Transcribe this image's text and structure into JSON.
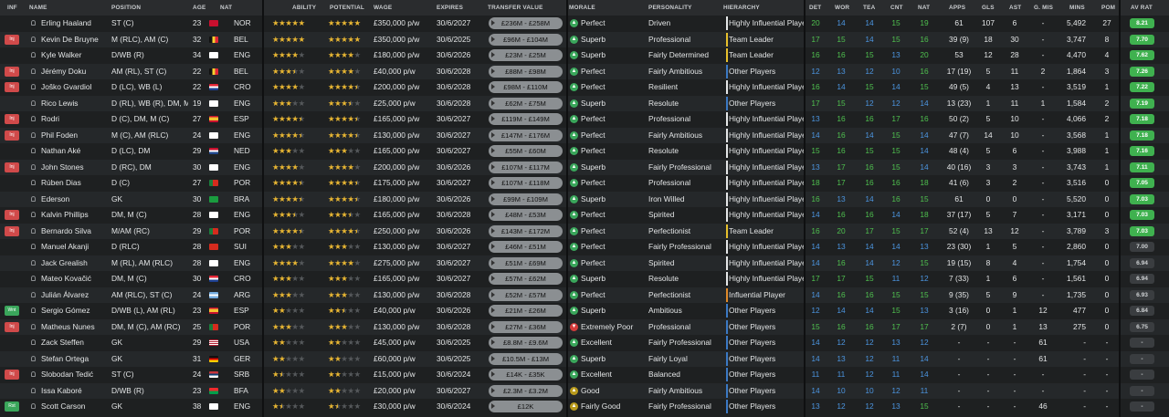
{
  "headers": [
    "INF",
    "NAME",
    "POSITION",
    "AGE",
    "NAT",
    "ABILITY",
    "POTENTIAL",
    "WAGE",
    "EXPIRES",
    "TRANSFER VALUE",
    "MORALE",
    "PERSONALITY",
    "HIERARCHY",
    "DET",
    "WOR",
    "TEA",
    "CNT",
    "NAT",
    "APPS",
    "GLS",
    "AST",
    "G. MIS",
    "MINS",
    "POM",
    "AV RAT"
  ],
  "colors": {
    "gold": "#e8b633",
    "green_rating": "#3fb14f",
    "hier_yellow": "#e7c02c",
    "hier_white": "#e5e7e8",
    "hier_blue": "#3b79c4",
    "hier_orange": "#e08a2a",
    "hier_grey": "#9a9da0"
  },
  "players": [
    {
      "inf": "",
      "name": "Erling Haaland",
      "pos": "ST (C)",
      "age": "23",
      "nat": "NOR",
      "ab": 5,
      "pot": 5,
      "wage": "£350,000 p/w",
      "exp": "30/6/2027",
      "tv": "£236M - £258M",
      "mor": "Perfect",
      "mt": "pos",
      "pers": "Driven",
      "hier": "Highly Influential Player",
      "hc": "white",
      "det": "20",
      "wor": "14",
      "tea": "14",
      "cnt": "15",
      "nat2": "19",
      "apps": "61",
      "gls": "107",
      "ast": "6",
      "gmis": "-",
      "mins": "5,492",
      "pom": "27",
      "rat": "8.21",
      "rc": "g"
    },
    {
      "inf": "Inj",
      "name": "Kevin De Bruyne",
      "pos": "M (RLC), AM (C)",
      "age": "32",
      "nat": "BEL",
      "ab": 5,
      "pot": 5,
      "wage": "£350,000 p/w",
      "exp": "30/6/2025",
      "tv": "£96M - £104M",
      "mor": "Superb",
      "mt": "pos",
      "pers": "Professional",
      "hier": "Team Leader",
      "hc": "yellow",
      "det": "17",
      "wor": "15",
      "tea": "14",
      "cnt": "15",
      "nat2": "16",
      "apps": "39 (9)",
      "gls": "18",
      "ast": "30",
      "gmis": "-",
      "mins": "3,747",
      "pom": "8",
      "rat": "7.70",
      "rc": "g"
    },
    {
      "inf": "",
      "name": "Kyle Walker",
      "pos": "D/WB (R)",
      "age": "34",
      "nat": "ENG",
      "ab": 4,
      "pot": 4,
      "wage": "£180,000 p/w",
      "exp": "30/6/2026",
      "tv": "£23M - £25M",
      "mor": "Superb",
      "mt": "pos",
      "pers": "Fairly Determined",
      "hier": "Team Leader",
      "hc": "yellow",
      "det": "16",
      "wor": "16",
      "tea": "15",
      "cnt": "13",
      "nat2": "20",
      "apps": "53",
      "gls": "12",
      "ast": "28",
      "gmis": "-",
      "mins": "4,470",
      "pom": "4",
      "rat": "7.62",
      "rc": "g"
    },
    {
      "inf": "Inj",
      "name": "Jérémy Doku",
      "pos": "AM (RL), ST (C)",
      "age": "22",
      "nat": "BEL",
      "ab": 3.5,
      "pot": 4,
      "wage": "£40,000 p/w",
      "exp": "30/6/2028",
      "tv": "£88M - £98M",
      "mor": "Perfect",
      "mt": "pos",
      "pers": "Fairly Ambitious",
      "hier": "Other Players",
      "hc": "blue",
      "det": "12",
      "wor": "13",
      "tea": "12",
      "cnt": "10",
      "nat2": "16",
      "apps": "17 (19)",
      "gls": "5",
      "ast": "11",
      "gmis": "2",
      "mins": "1,864",
      "pom": "3",
      "rat": "7.26",
      "rc": "g"
    },
    {
      "inf": "Inj",
      "name": "Joško Gvardiol",
      "pos": "D (LC), WB (L)",
      "age": "22",
      "nat": "CRO",
      "ab": 4,
      "pot": 4.5,
      "wage": "£200,000 p/w",
      "exp": "30/6/2028",
      "tv": "£98M - £110M",
      "mor": "Perfect",
      "mt": "pos",
      "pers": "Resilient",
      "hier": "Highly Influential Player",
      "hc": "white",
      "det": "16",
      "wor": "14",
      "tea": "15",
      "cnt": "14",
      "nat2": "15",
      "apps": "49 (5)",
      "gls": "4",
      "ast": "13",
      "gmis": "-",
      "mins": "3,519",
      "pom": "1",
      "rat": "7.22",
      "rc": "g"
    },
    {
      "inf": "",
      "name": "Rico Lewis",
      "pos": "D (RL), WB (R), DM, M (C)",
      "age": "19",
      "nat": "ENG",
      "ab": 3,
      "pot": 3.5,
      "wage": "£25,000 p/w",
      "exp": "30/6/2028",
      "tv": "£62M - £75M",
      "mor": "Superb",
      "mt": "pos",
      "pers": "Resolute",
      "hier": "Other Players",
      "hc": "blue",
      "det": "17",
      "wor": "15",
      "tea": "12",
      "cnt": "12",
      "nat2": "14",
      "apps": "13 (23)",
      "gls": "1",
      "ast": "11",
      "gmis": "1",
      "mins": "1,584",
      "pom": "2",
      "rat": "7.19",
      "rc": "g"
    },
    {
      "inf": "Inj",
      "name": "Rodri",
      "pos": "D (C), DM, M (C)",
      "age": "27",
      "nat": "ESP",
      "ab": 4.5,
      "pot": 4.5,
      "wage": "£165,000 p/w",
      "exp": "30/6/2027",
      "tv": "£119M - £149M",
      "mor": "Perfect",
      "mt": "pos",
      "pers": "Professional",
      "hier": "Highly Influential Player",
      "hc": "white",
      "det": "13",
      "wor": "16",
      "tea": "16",
      "cnt": "17",
      "nat2": "16",
      "apps": "50 (2)",
      "gls": "5",
      "ast": "10",
      "gmis": "-",
      "mins": "4,066",
      "pom": "2",
      "rat": "7.18",
      "rc": "g"
    },
    {
      "inf": "Inj",
      "name": "Phil Foden",
      "pos": "M (C), AM (RLC)",
      "age": "24",
      "nat": "ENG",
      "ab": 4.5,
      "pot": 4.5,
      "wage": "£130,000 p/w",
      "exp": "30/6/2027",
      "tv": "£147M - £176M",
      "mor": "Perfect",
      "mt": "pos",
      "pers": "Fairly Ambitious",
      "hier": "Highly Influential Player",
      "hc": "white",
      "det": "14",
      "wor": "16",
      "tea": "14",
      "cnt": "15",
      "nat2": "14",
      "apps": "47 (7)",
      "gls": "14",
      "ast": "10",
      "gmis": "-",
      "mins": "3,568",
      "pom": "1",
      "rat": "7.18",
      "rc": "g"
    },
    {
      "inf": "",
      "name": "Nathan Aké",
      "pos": "D (LC), DM",
      "age": "29",
      "nat": "NED",
      "ab": 3,
      "pot": 3,
      "wage": "£165,000 p/w",
      "exp": "30/6/2027",
      "tv": "£55M - £60M",
      "mor": "Perfect",
      "mt": "pos",
      "pers": "Resolute",
      "hier": "Highly Influential Player",
      "hc": "white",
      "det": "15",
      "wor": "16",
      "tea": "15",
      "cnt": "15",
      "nat2": "14",
      "apps": "48 (4)",
      "gls": "5",
      "ast": "6",
      "gmis": "-",
      "mins": "3,988",
      "pom": "1",
      "rat": "7.16",
      "rc": "g"
    },
    {
      "inf": "Inj",
      "name": "John Stones",
      "pos": "D (RC), DM",
      "age": "30",
      "nat": "ENG",
      "ab": 4,
      "pot": 4,
      "wage": "£200,000 p/w",
      "exp": "30/6/2026",
      "tv": "£107M - £117M",
      "mor": "Superb",
      "mt": "pos",
      "pers": "Fairly Professional",
      "hier": "Highly Influential Player",
      "hc": "white",
      "det": "13",
      "wor": "17",
      "tea": "16",
      "cnt": "15",
      "nat2": "14",
      "apps": "40 (16)",
      "gls": "3",
      "ast": "3",
      "gmis": "-",
      "mins": "3,743",
      "pom": "1",
      "rat": "7.11",
      "rc": "g"
    },
    {
      "inf": "",
      "name": "Rúben Dias",
      "pos": "D (C)",
      "age": "27",
      "nat": "POR",
      "ab": 4.5,
      "pot": 4.5,
      "wage": "£175,000 p/w",
      "exp": "30/6/2027",
      "tv": "£107M - £118M",
      "mor": "Perfect",
      "mt": "pos",
      "pers": "Professional",
      "hier": "Highly Influential Player",
      "hc": "white",
      "det": "18",
      "wor": "17",
      "tea": "16",
      "cnt": "16",
      "nat2": "18",
      "apps": "41 (6)",
      "gls": "3",
      "ast": "2",
      "gmis": "-",
      "mins": "3,516",
      "pom": "0",
      "rat": "7.05",
      "rc": "g"
    },
    {
      "inf": "",
      "name": "Ederson",
      "pos": "GK",
      "age": "30",
      "nat": "BRA",
      "ab": 4.5,
      "pot": 4.5,
      "wage": "£180,000 p/w",
      "exp": "30/6/2026",
      "tv": "£99M - £109M",
      "mor": "Superb",
      "mt": "pos",
      "pers": "Iron Willed",
      "hier": "Highly Influential Player",
      "hc": "white",
      "det": "16",
      "wor": "13",
      "tea": "14",
      "cnt": "16",
      "nat2": "15",
      "apps": "61",
      "gls": "0",
      "ast": "0",
      "gmis": "-",
      "mins": "5,520",
      "pom": "0",
      "rat": "7.03",
      "rc": "g"
    },
    {
      "inf": "Inj",
      "name": "Kalvin Phillips",
      "pos": "DM, M (C)",
      "age": "28",
      "nat": "ENG",
      "ab": 3.5,
      "pot": 3.5,
      "wage": "£165,000 p/w",
      "exp": "30/6/2028",
      "tv": "£48M - £53M",
      "mor": "Perfect",
      "mt": "pos",
      "pers": "Spirited",
      "hier": "Highly Influential Player",
      "hc": "white",
      "det": "14",
      "wor": "16",
      "tea": "16",
      "cnt": "14",
      "nat2": "18",
      "apps": "37 (17)",
      "gls": "5",
      "ast": "7",
      "gmis": "-",
      "mins": "3,171",
      "pom": "0",
      "rat": "7.03",
      "rc": "g"
    },
    {
      "inf": "Inj",
      "name": "Bernardo Silva",
      "pos": "M/AM (RC)",
      "age": "29",
      "nat": "POR",
      "ab": 4.5,
      "pot": 4.5,
      "wage": "£250,000 p/w",
      "exp": "30/6/2026",
      "tv": "£143M - £172M",
      "mor": "Perfect",
      "mt": "pos",
      "pers": "Perfectionist",
      "hier": "Team Leader",
      "hc": "yellow",
      "det": "16",
      "wor": "20",
      "tea": "17",
      "cnt": "15",
      "nat2": "17",
      "apps": "52 (4)",
      "gls": "13",
      "ast": "12",
      "gmis": "-",
      "mins": "3,789",
      "pom": "3",
      "rat": "7.03",
      "rc": "g"
    },
    {
      "inf": "",
      "name": "Manuel Akanji",
      "pos": "D (RLC)",
      "age": "28",
      "nat": "SUI",
      "ab": 3,
      "pot": 3,
      "wage": "£130,000 p/w",
      "exp": "30/6/2027",
      "tv": "£46M - £51M",
      "mor": "Perfect",
      "mt": "pos",
      "pers": "Fairly Professional",
      "hier": "Highly Influential Player",
      "hc": "white",
      "det": "14",
      "wor": "13",
      "tea": "14",
      "cnt": "14",
      "nat2": "13",
      "apps": "23 (30)",
      "gls": "1",
      "ast": "5",
      "gmis": "-",
      "mins": "2,860",
      "pom": "0",
      "rat": "7.00",
      "rc": "n"
    },
    {
      "inf": "",
      "name": "Jack Grealish",
      "pos": "M (RL), AM (RLC)",
      "age": "28",
      "nat": "ENG",
      "ab": 4,
      "pot": 4,
      "wage": "£275,000 p/w",
      "exp": "30/6/2027",
      "tv": "£51M - £69M",
      "mor": "Perfect",
      "mt": "pos",
      "pers": "Spirited",
      "hier": "Highly Influential Player",
      "hc": "white",
      "det": "14",
      "wor": "16",
      "tea": "14",
      "cnt": "12",
      "nat2": "15",
      "apps": "19 (15)",
      "gls": "8",
      "ast": "4",
      "gmis": "-",
      "mins": "1,754",
      "pom": "0",
      "rat": "6.94",
      "rc": "n"
    },
    {
      "inf": "",
      "name": "Mateo Kovačić",
      "pos": "DM, M (C)",
      "age": "30",
      "nat": "CRO",
      "ab": 3,
      "pot": 3,
      "wage": "£165,000 p/w",
      "exp": "30/6/2027",
      "tv": "£57M - £62M",
      "mor": "Superb",
      "mt": "pos",
      "pers": "Resolute",
      "hier": "Highly Influential Player",
      "hc": "white",
      "det": "17",
      "wor": "17",
      "tea": "15",
      "cnt": "11",
      "nat2": "12",
      "apps": "7 (33)",
      "gls": "1",
      "ast": "6",
      "gmis": "-",
      "mins": "1,561",
      "pom": "0",
      "rat": "6.94",
      "rc": "n"
    },
    {
      "inf": "",
      "name": "Julián Álvarez",
      "pos": "AM (RLC), ST (C)",
      "age": "24",
      "nat": "ARG",
      "ab": 3,
      "pot": 3,
      "wage": "£130,000 p/w",
      "exp": "30/6/2028",
      "tv": "£52M - £57M",
      "mor": "Perfect",
      "mt": "pos",
      "pers": "Perfectionist",
      "hier": "Influential Player",
      "hc": "orange",
      "det": "14",
      "wor": "16",
      "tea": "16",
      "cnt": "15",
      "nat2": "15",
      "apps": "9 (35)",
      "gls": "5",
      "ast": "9",
      "gmis": "-",
      "mins": "1,735",
      "pom": "0",
      "rat": "6.93",
      "rc": "n"
    },
    {
      "inf": "Wnt",
      "name": "Sergio Gómez",
      "pos": "D/WB (L), AM (RL)",
      "age": "23",
      "nat": "ESP",
      "ab": 2,
      "pot": 2.5,
      "wage": "£40,000 p/w",
      "exp": "30/6/2026",
      "tv": "£21M - £26M",
      "mor": "Superb",
      "mt": "pos",
      "pers": "Ambitious",
      "hier": "Other Players",
      "hc": "blue",
      "det": "12",
      "wor": "14",
      "tea": "14",
      "cnt": "15",
      "nat2": "13",
      "apps": "3 (16)",
      "gls": "0",
      "ast": "1",
      "gmis": "12",
      "mins": "477",
      "pom": "0",
      "rat": "6.84",
      "rc": "n"
    },
    {
      "inf": "Inj",
      "name": "Matheus Nunes",
      "pos": "DM, M (C), AM (RC)",
      "age": "25",
      "nat": "POR",
      "ab": 3,
      "pot": 3,
      "wage": "£130,000 p/w",
      "exp": "30/6/2028",
      "tv": "£27M - £36M",
      "mor": "Extremely Poor",
      "mt": "neg",
      "pers": "Professional",
      "hier": "Other Players",
      "hc": "blue",
      "det": "15",
      "wor": "16",
      "tea": "16",
      "cnt": "17",
      "nat2": "17",
      "apps": "2 (7)",
      "gls": "0",
      "ast": "1",
      "gmis": "13",
      "mins": "275",
      "pom": "0",
      "rat": "6.75",
      "rc": "n"
    },
    {
      "inf": "",
      "name": "Zack Steffen",
      "pos": "GK",
      "age": "29",
      "nat": "USA",
      "ab": 2,
      "pot": 2,
      "wage": "£45,000 p/w",
      "exp": "30/6/2025",
      "tv": "£8.8M - £9.6M",
      "mor": "Excellent",
      "mt": "pos",
      "pers": "Fairly Professional",
      "hier": "Other Players",
      "hc": "blue",
      "det": "14",
      "wor": "12",
      "tea": "12",
      "cnt": "13",
      "nat2": "12",
      "apps": "-",
      "gls": "-",
      "ast": "-",
      "gmis": "61",
      "mins": "-",
      "pom": "-",
      "rat": "-",
      "rc": "n"
    },
    {
      "inf": "",
      "name": "Stefan Ortega",
      "pos": "GK",
      "age": "31",
      "nat": "GER",
      "ab": 2,
      "pot": 2,
      "wage": "£60,000 p/w",
      "exp": "30/6/2025",
      "tv": "£10.5M - £13M",
      "mor": "Superb",
      "mt": "pos",
      "pers": "Fairly Loyal",
      "hier": "Other Players",
      "hc": "blue",
      "det": "14",
      "wor": "13",
      "tea": "12",
      "cnt": "11",
      "nat2": "14",
      "apps": "-",
      "gls": "-",
      "ast": "-",
      "gmis": "61",
      "mins": "-",
      "pom": "-",
      "rat": "-",
      "rc": "n"
    },
    {
      "inf": "Inj",
      "name": "Slobodan Tedić",
      "pos": "ST (C)",
      "age": "24",
      "nat": "SRB",
      "ab": 1.5,
      "pot": 2,
      "wage": "£15,000 p/w",
      "exp": "30/6/2024",
      "tv": "£14K - £35K",
      "mor": "Excellent",
      "mt": "pos",
      "pers": "Balanced",
      "hier": "Other Players",
      "hc": "blue",
      "det": "11",
      "wor": "11",
      "tea": "12",
      "cnt": "11",
      "nat2": "14",
      "apps": "-",
      "gls": "-",
      "ast": "-",
      "gmis": "-",
      "mins": "-",
      "pom": "-",
      "rat": "-",
      "rc": "n"
    },
    {
      "inf": "",
      "name": "Issa Kaboré",
      "pos": "D/WB (R)",
      "age": "23",
      "nat": "BFA",
      "ab": 2,
      "pot": 2,
      "wage": "£20,000 p/w",
      "exp": "30/6/2027",
      "tv": "£2.3M - £3.2M",
      "mor": "Good",
      "mt": "mid",
      "pers": "Fairly Ambitious",
      "hier": "Other Players",
      "hc": "blue",
      "det": "14",
      "wor": "10",
      "tea": "10",
      "cnt": "12",
      "nat2": "11",
      "apps": "-",
      "gls": "-",
      "ast": "-",
      "gmis": "-",
      "mins": "-",
      "pom": "-",
      "rat": "-",
      "rc": "n"
    },
    {
      "inf": "Rst",
      "name": "Scott Carson",
      "pos": "GK",
      "age": "38",
      "nat": "ENG",
      "ab": 1.5,
      "pot": 1.5,
      "wage": "£30,000 p/w",
      "exp": "30/6/2024",
      "tv": "£12K",
      "mor": "Fairly Good",
      "mt": "mid",
      "pers": "Fairly Professional",
      "hier": "Other Players",
      "hc": "blue",
      "det": "13",
      "wor": "12",
      "tea": "12",
      "cnt": "13",
      "nat2": "15",
      "apps": "-",
      "gls": "-",
      "ast": "-",
      "gmis": "46",
      "mins": "-",
      "pom": "-",
      "rat": "-",
      "rc": "n"
    }
  ]
}
